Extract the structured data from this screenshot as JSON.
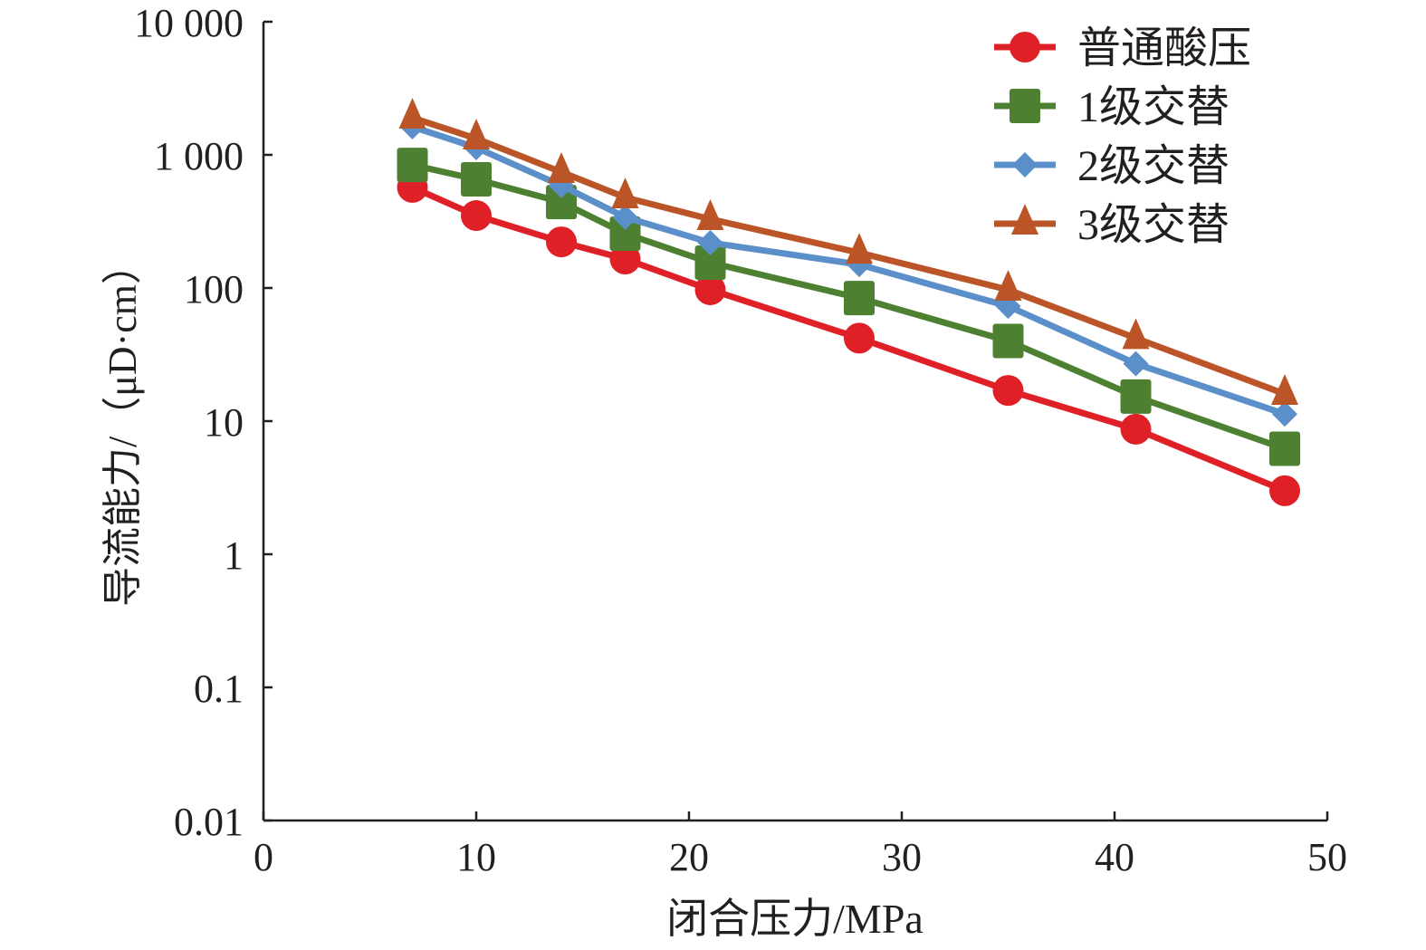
{
  "chart_data": {
    "type": "line",
    "title": "",
    "xlabel": "闭合压力/MPa",
    "ylabel": "导流能力/（μD·cm）",
    "xlim": [
      0,
      50
    ],
    "ylim": [
      0.01,
      10000
    ],
    "yscale": "log",
    "grid": false,
    "legend_position": "top-right",
    "x_ticks": [
      0,
      10,
      20,
      30,
      40,
      50
    ],
    "x_tick_labels": [
      "0",
      "10",
      "20",
      "30",
      "40",
      "50"
    ],
    "y_ticks": [
      0.01,
      0.1,
      1,
      10,
      100,
      1000,
      10000
    ],
    "y_tick_labels": [
      "0.01",
      "0.1",
      "1",
      "10",
      "100",
      "1 000",
      "10 000"
    ],
    "x": [
      7,
      10,
      14,
      17,
      21,
      28,
      35,
      41,
      48
    ],
    "series": [
      {
        "name": "普通酸压",
        "color": "#e02027",
        "marker": "circle",
        "values": [
          570,
          350,
          222,
          165,
          97,
          42,
          17,
          8.7,
          3.0
        ]
      },
      {
        "name": "1级交替",
        "color": "#4d8131",
        "marker": "square",
        "values": [
          840,
          655,
          442,
          256,
          155,
          84,
          40,
          15.3,
          6.2
        ]
      },
      {
        "name": "2级交替",
        "color": "#5b8fc9",
        "marker": "diamond",
        "values": [
          1625,
          1133,
          588,
          340,
          219,
          150,
          73,
          27,
          11.3
        ]
      },
      {
        "name": "3级交替",
        "color": "#bb5527",
        "marker": "triangle",
        "values": [
          1900,
          1325,
          743,
          479,
          329,
          184,
          97,
          42,
          16
        ]
      }
    ]
  }
}
